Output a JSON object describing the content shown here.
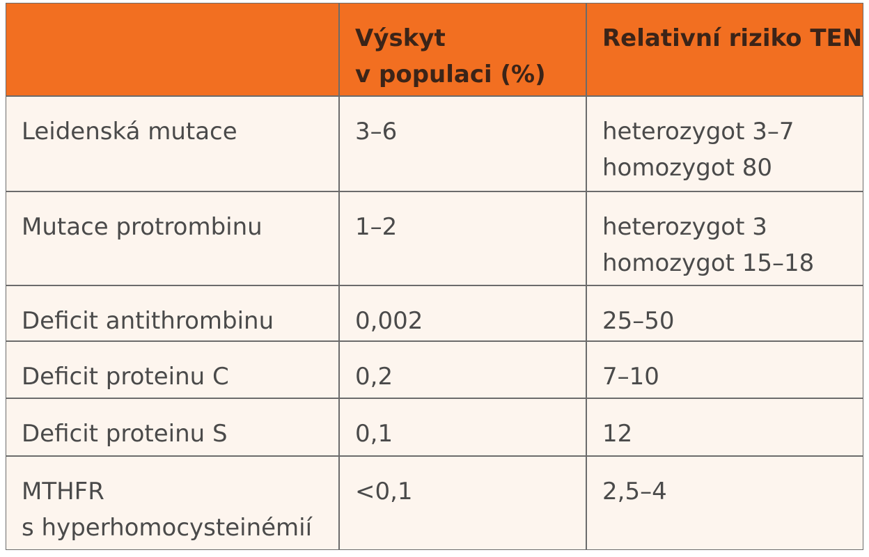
{
  "table": {
    "header": [
      [
        "Výskyt",
        "v populaci (%)"
      ],
      [
        "Relativní riziko TEN"
      ]
    ],
    "rows": [
      [
        [
          "Leidenská mutace"
        ],
        [
          "3–6"
        ],
        [
          "heterozygot 3–7",
          "homozygot 80"
        ]
      ],
      [
        [
          "Mutace protrombinu"
        ],
        [
          "1–2"
        ],
        [
          "heterozygot 3",
          "homozygot 15–18"
        ]
      ],
      [
        [
          "Deficit antithrombinu"
        ],
        [
          "0,002"
        ],
        [
          "25–50"
        ]
      ],
      [
        [
          "Deficit proteinu C"
        ],
        [
          "0,2"
        ],
        [
          "7–10"
        ]
      ],
      [
        [
          "Deficit proteinu S"
        ],
        [
          "0,1"
        ],
        [
          "12"
        ]
      ],
      [
        [
          "MTHFR",
          "s hyperhomocysteinémií"
        ],
        [
          "<0,1"
        ],
        [
          "2,5–4"
        ]
      ]
    ]
  }
}
